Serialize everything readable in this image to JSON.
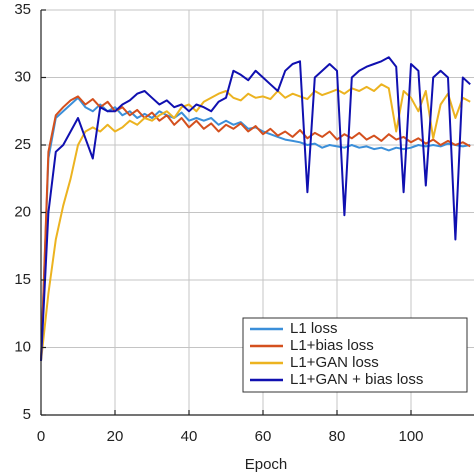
{
  "chart_data": {
    "type": "line",
    "xlabel": "Epoch",
    "x": [
      0,
      2,
      4,
      6,
      8,
      10,
      12,
      14,
      16,
      18,
      20,
      22,
      24,
      26,
      28,
      30,
      32,
      34,
      36,
      38,
      40,
      42,
      44,
      46,
      48,
      50,
      52,
      54,
      56,
      58,
      60,
      62,
      64,
      66,
      68,
      70,
      72,
      74,
      76,
      78,
      80,
      82,
      84,
      86,
      88,
      90,
      92,
      94,
      96,
      98,
      100,
      102,
      104,
      106,
      108,
      110,
      112,
      114,
      116
    ],
    "series": [
      {
        "name": "L1 loss",
        "color": "#3b8fd9",
        "values": [
          9,
          24,
          27,
          27.5,
          28,
          28.5,
          27.8,
          27.5,
          28,
          27.5,
          27.8,
          27.2,
          27.5,
          27,
          27.3,
          27,
          27.5,
          27.2,
          27,
          27.4,
          26.8,
          27,
          26.8,
          27,
          26.5,
          26.8,
          26.5,
          26.7,
          26.2,
          26.3,
          26,
          25.8,
          25.6,
          25.4,
          25.3,
          25.2,
          25,
          25.1,
          24.8,
          25,
          24.9,
          24.8,
          25,
          24.8,
          24.9,
          24.7,
          24.8,
          24.6,
          24.8,
          24.7,
          24.8,
          25,
          24.9,
          25,
          24.9,
          25.1,
          25,
          24.9,
          25
        ]
      },
      {
        "name": "L1+bias loss",
        "color": "#d4501e",
        "values": [
          9,
          24.5,
          27.2,
          27.8,
          28.3,
          28.6,
          28,
          28.4,
          27.8,
          28.2,
          27.5,
          27.8,
          27.2,
          27.6,
          27,
          27.4,
          26.8,
          27.2,
          26.5,
          27,
          26.3,
          26.8,
          26.2,
          26.6,
          26,
          26.5,
          26.2,
          26.6,
          26,
          26.4,
          25.8,
          26.2,
          25.7,
          26,
          25.6,
          26.1,
          25.5,
          25.9,
          25.6,
          26,
          25.4,
          25.8,
          25.5,
          25.9,
          25.4,
          25.7,
          25.3,
          25.8,
          25.4,
          25.6,
          25.2,
          25.5,
          25.1,
          25.4,
          25,
          25.3,
          25,
          25.2,
          24.9
        ]
      },
      {
        "name": "L1+GAN loss",
        "color": "#ecb320",
        "values": [
          9,
          14,
          18,
          20.5,
          22.5,
          25,
          26,
          26.3,
          26,
          26.5,
          26,
          26.3,
          26.8,
          26.5,
          27,
          26.8,
          27.2,
          27.5,
          27,
          27.8,
          28,
          27.5,
          28.2,
          28.5,
          28.8,
          29,
          28.5,
          28.3,
          28.8,
          28.5,
          28.6,
          28.4,
          29,
          28.5,
          28.8,
          28.6,
          28.4,
          29,
          28.7,
          28.9,
          29.1,
          28.8,
          29.2,
          29,
          29.3,
          29,
          29.5,
          29.2,
          26,
          29,
          28.5,
          27.5,
          29,
          25.5,
          28,
          28.8,
          27,
          28.5,
          28.2
        ]
      },
      {
        "name": "L1+GAN + bias loss",
        "color": "#1010b0",
        "values": [
          9,
          20,
          24.5,
          25,
          26,
          27,
          25.5,
          24,
          27.8,
          27.5,
          27.5,
          28,
          28.3,
          28.8,
          29,
          28.5,
          28,
          28.3,
          27.8,
          28,
          27.5,
          28,
          27.8,
          27.5,
          28.2,
          28.5,
          30.5,
          30.2,
          29.8,
          30.5,
          30,
          29.5,
          29,
          30.5,
          31,
          31.2,
          21.5,
          30,
          30.5,
          31,
          30.5,
          19.8,
          30,
          30.5,
          30.8,
          31,
          31.2,
          31.5,
          30.8,
          21.5,
          31,
          30.5,
          22,
          30,
          30.5,
          30,
          18,
          30,
          29.5
        ]
      }
    ],
    "xlim": [
      0,
      117
    ],
    "xticks": [
      0,
      20,
      40,
      60,
      80,
      100
    ],
    "ylim": [
      5,
      35
    ],
    "yticks": [
      5,
      10,
      15,
      20,
      25,
      30,
      35
    ],
    "grid": true,
    "legend": "lower right"
  }
}
